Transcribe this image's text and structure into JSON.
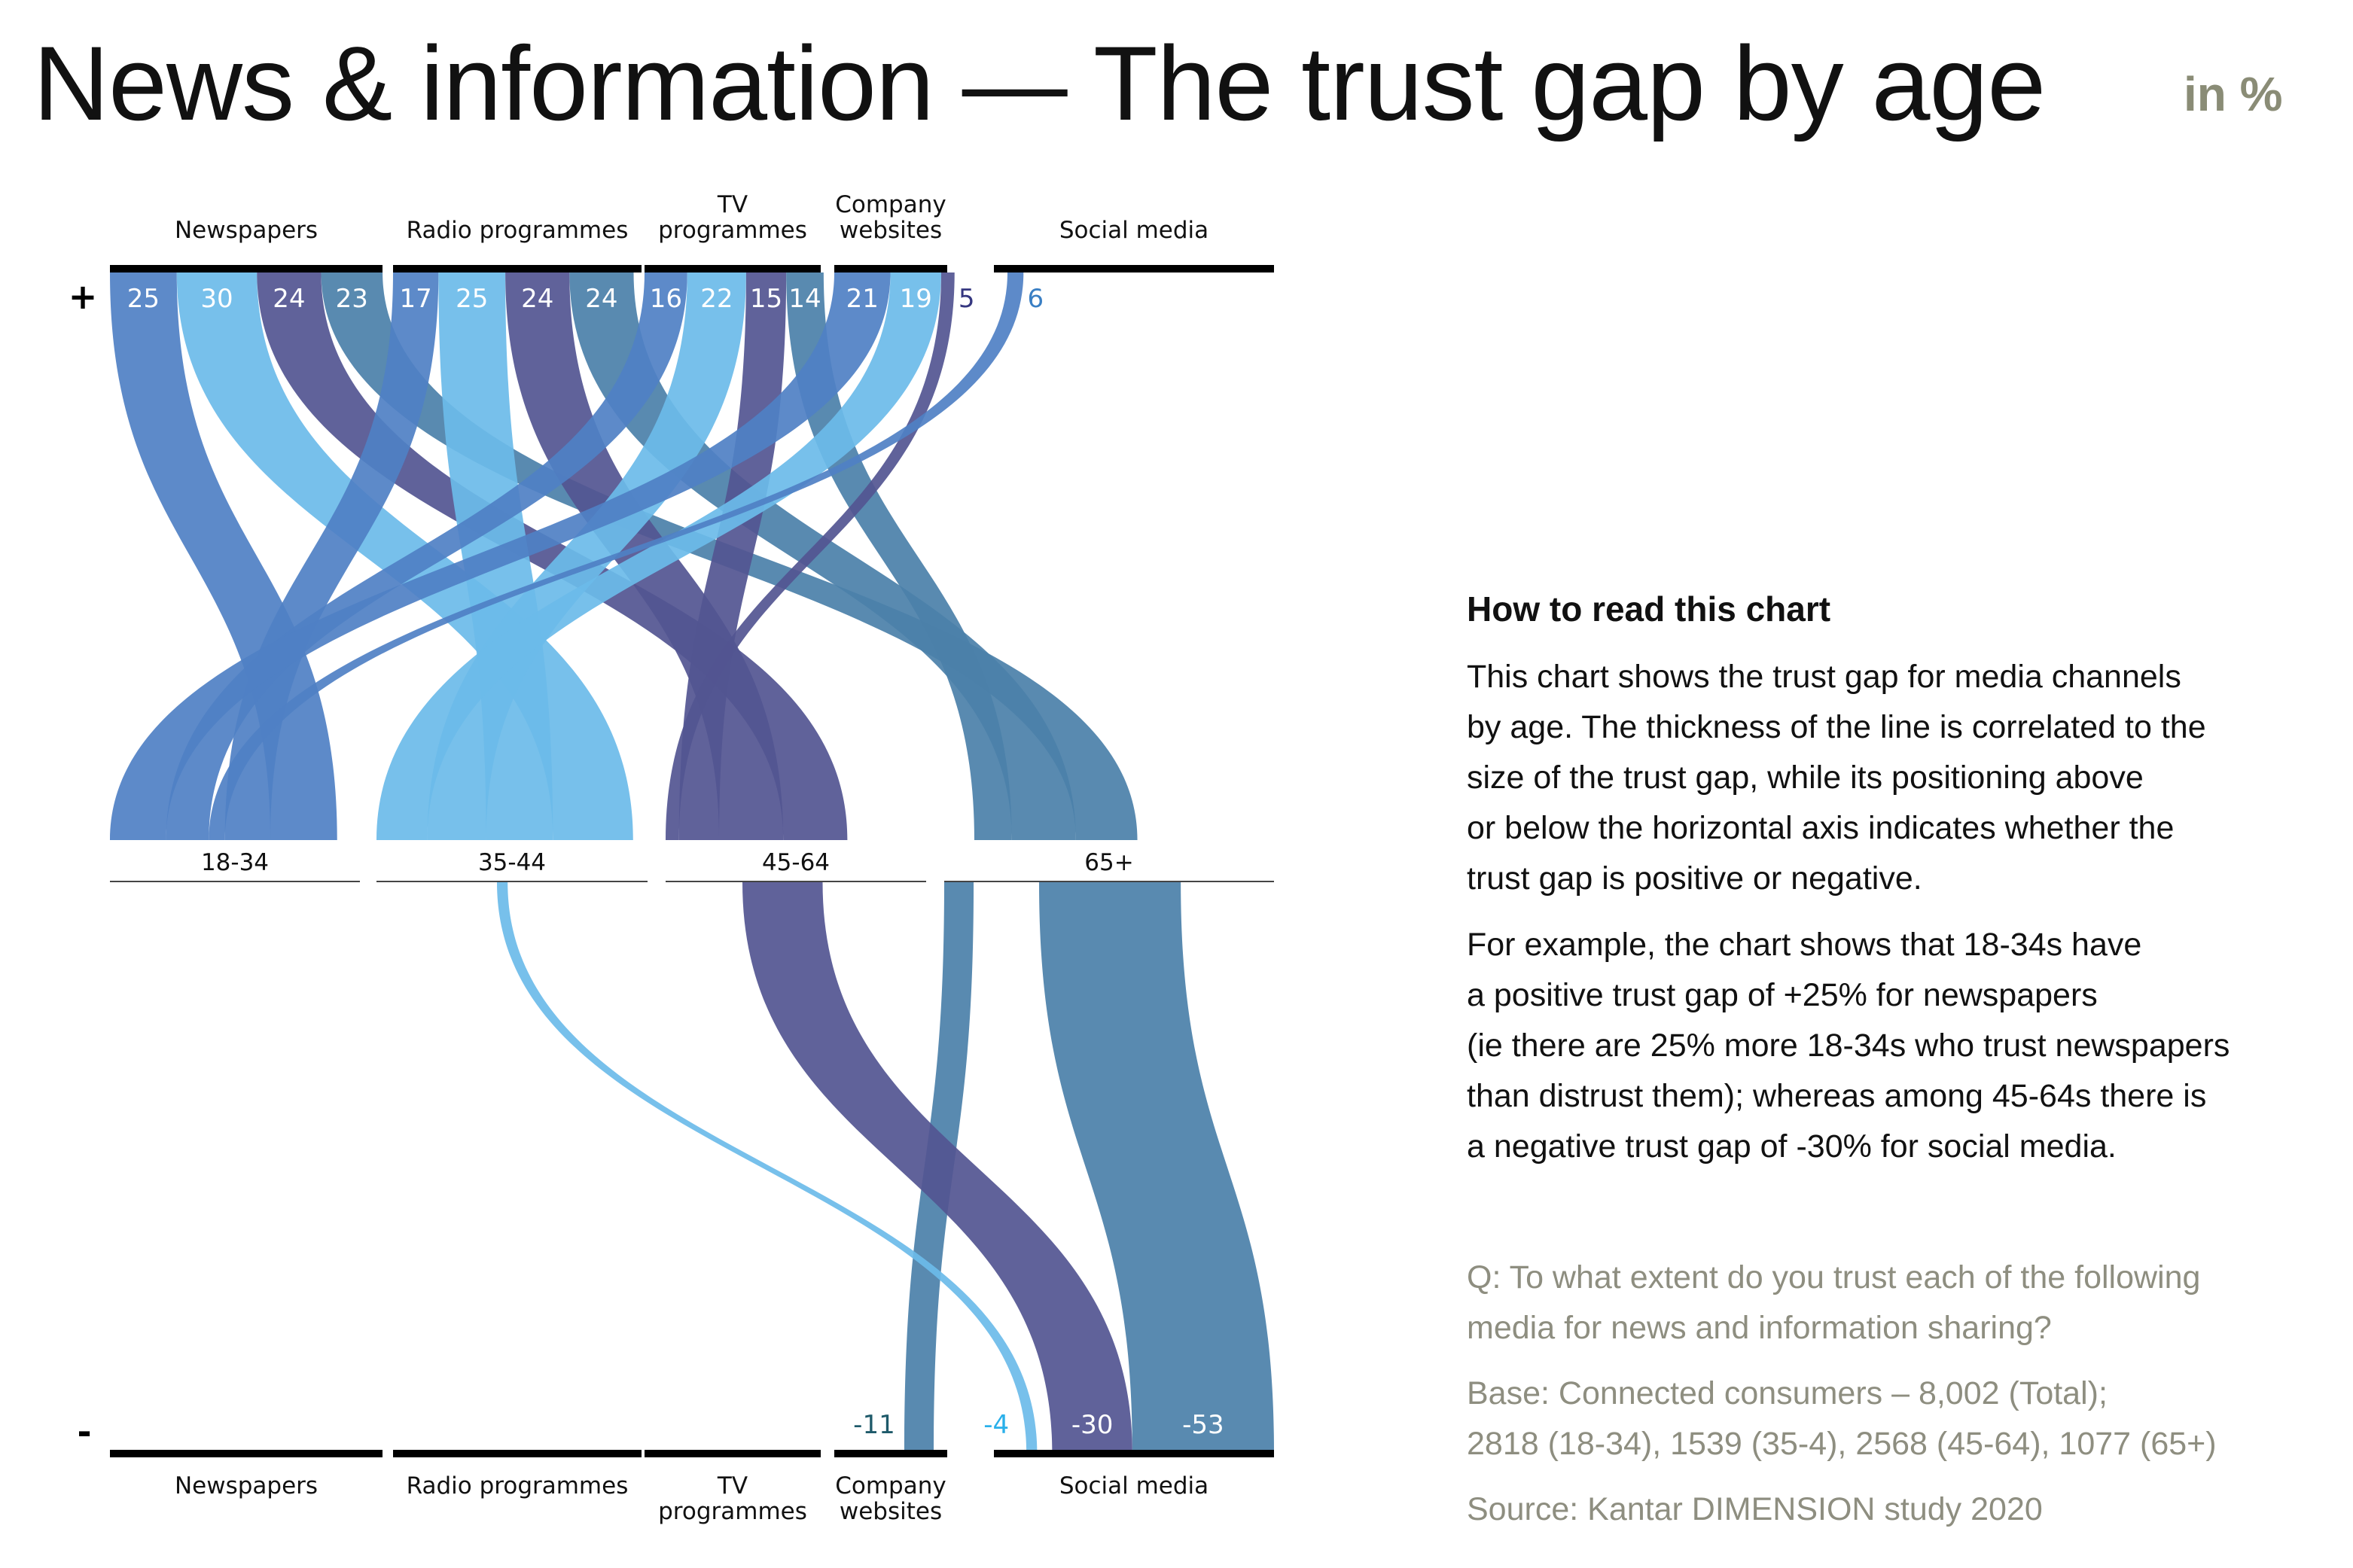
{
  "title": "News & information — The trust gap by age",
  "unit": "in %",
  "chart_data": {
    "type": "sankey",
    "categories": [
      "Newspapers",
      "Radio programmes",
      "TV\nprogrammes",
      "Company\nwebsites",
      "Social media"
    ],
    "age_groups": [
      "18-34",
      "35-44",
      "45-64",
      "65+"
    ],
    "positive_marker": "+",
    "negative_marker": "-",
    "colors": {
      "18-34": "#4f80c4",
      "35-44": "#6bbbe9",
      "45-64": "#535591",
      "65+": "#4b80a9"
    },
    "series": [
      {
        "name": "18-34",
        "values": [
          25,
          17,
          16,
          21,
          6
        ]
      },
      {
        "name": "35-44",
        "values": [
          30,
          25,
          22,
          19,
          -4
        ]
      },
      {
        "name": "45-64",
        "values": [
          24,
          24,
          15,
          5,
          -30
        ]
      },
      {
        "name": "65+",
        "values": [
          23,
          24,
          14,
          -11,
          -53
        ]
      }
    ]
  },
  "howto": {
    "heading": "How to read this chart",
    "para1": [
      "This chart shows the trust gap for media channels",
      "by age. The thickness of the line is correlated to the",
      "size of the trust gap, while its positioning above",
      "or below the horizontal axis indicates whether the",
      "trust gap is positive or negative."
    ],
    "para2": [
      "For example, the chart shows that 18-34s have",
      "a positive trust gap of +25% for newspapers",
      "(ie there are 25% more 18-34s who trust newspapers",
      "than distrust them); whereas among 45-64s there is",
      "a negative trust gap of -30% for social media."
    ]
  },
  "notes": {
    "question": [
      "Q: To what extent do you trust each of the following",
      "media for news and information sharing?"
    ],
    "base": [
      "Base: Connected consumers – 8,002 (Total);",
      "2818 (18-34), 1539 (35-4), 2568 (45-64), 1077 (65+)"
    ],
    "source": "Source: Kantar DIMENSION study 2020"
  }
}
